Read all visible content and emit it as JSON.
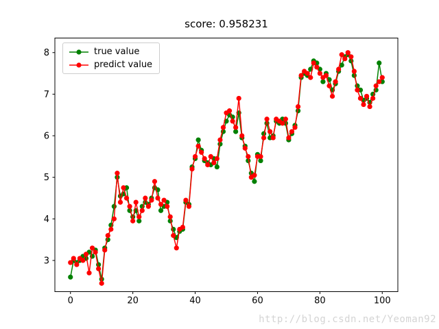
{
  "watermark": "http://blog.csdn.net/Yeoman92",
  "chart_data": {
    "type": "line",
    "title": "score: 0.958231",
    "xlabel": "",
    "ylabel": "",
    "xlim": [
      -5,
      105
    ],
    "ylim": [
      2.25,
      8.35
    ],
    "xticks": [
      0,
      20,
      40,
      60,
      80,
      100
    ],
    "yticks": [
      3,
      4,
      5,
      6,
      7,
      8
    ],
    "grid": false,
    "legend_position": "upper-left",
    "x": [
      0,
      1,
      2,
      3,
      4,
      5,
      6,
      7,
      8,
      9,
      10,
      11,
      12,
      13,
      14,
      15,
      16,
      17,
      18,
      19,
      20,
      21,
      22,
      23,
      24,
      25,
      26,
      27,
      28,
      29,
      30,
      31,
      32,
      33,
      34,
      35,
      36,
      37,
      38,
      39,
      40,
      41,
      42,
      43,
      44,
      45,
      46,
      47,
      48,
      49,
      50,
      51,
      52,
      53,
      54,
      55,
      56,
      57,
      58,
      59,
      60,
      61,
      62,
      63,
      64,
      65,
      66,
      67,
      68,
      69,
      70,
      71,
      72,
      73,
      74,
      75,
      76,
      77,
      78,
      79,
      80,
      81,
      82,
      83,
      84,
      85,
      86,
      87,
      88,
      89,
      90,
      91,
      92,
      93,
      94,
      95,
      96,
      97,
      98,
      99,
      100
    ],
    "series": [
      {
        "name": "true value",
        "color": "#008000",
        "marker": "circle",
        "values": [
          2.6,
          3.0,
          2.95,
          3.0,
          3.1,
          3.05,
          3.2,
          3.1,
          3.25,
          2.9,
          2.55,
          3.3,
          3.5,
          3.85,
          4.3,
          5.0,
          4.55,
          4.6,
          4.75,
          4.2,
          4.05,
          4.2,
          3.95,
          4.3,
          4.4,
          4.35,
          4.5,
          4.75,
          4.7,
          4.2,
          4.3,
          4.4,
          3.95,
          3.75,
          3.55,
          3.7,
          3.75,
          4.4,
          4.35,
          5.25,
          5.45,
          5.9,
          5.65,
          5.4,
          5.35,
          5.3,
          5.45,
          5.25,
          5.8,
          6.1,
          6.35,
          6.5,
          6.45,
          6.1,
          6.55,
          5.95,
          5.75,
          5.4,
          5.1,
          4.9,
          5.55,
          5.4,
          6.05,
          6.3,
          5.95,
          6.0,
          6.35,
          6.3,
          6.4,
          6.3,
          5.9,
          6.05,
          6.25,
          6.6,
          7.4,
          7.5,
          7.45,
          7.6,
          7.8,
          7.75,
          7.6,
          7.3,
          7.5,
          7.35,
          7.1,
          7.25,
          7.55,
          7.7,
          7.9,
          7.95,
          7.8,
          7.45,
          7.2,
          7.1,
          6.85,
          6.9,
          6.8,
          7.0,
          7.1,
          7.75,
          7.3
        ]
      },
      {
        "name": "predict value",
        "color": "#ff0000",
        "marker": "circle",
        "values": [
          2.95,
          3.05,
          2.9,
          3.05,
          3.0,
          3.15,
          2.7,
          3.3,
          3.2,
          2.8,
          2.45,
          3.25,
          3.6,
          3.75,
          4.0,
          5.1,
          4.4,
          4.75,
          4.5,
          4.3,
          3.95,
          4.4,
          4.05,
          4.2,
          4.5,
          4.3,
          4.45,
          4.9,
          4.5,
          4.35,
          4.45,
          4.3,
          4.05,
          3.6,
          3.3,
          3.75,
          3.8,
          4.45,
          4.3,
          5.2,
          5.5,
          5.75,
          5.6,
          5.45,
          5.3,
          5.5,
          5.35,
          5.45,
          5.9,
          6.2,
          6.55,
          6.6,
          6.35,
          6.2,
          6.9,
          6.0,
          5.7,
          5.5,
          5.0,
          5.05,
          5.5,
          5.5,
          5.95,
          6.4,
          6.1,
          5.95,
          6.4,
          6.35,
          6.3,
          6.4,
          5.95,
          6.1,
          6.2,
          6.7,
          7.45,
          7.55,
          7.5,
          7.4,
          7.75,
          7.65,
          7.5,
          7.4,
          7.45,
          7.2,
          6.95,
          7.3,
          7.6,
          7.95,
          7.85,
          8.0,
          7.9,
          7.55,
          7.1,
          6.9,
          6.75,
          6.95,
          6.7,
          6.9,
          7.2,
          7.3,
          7.4
        ]
      }
    ]
  }
}
